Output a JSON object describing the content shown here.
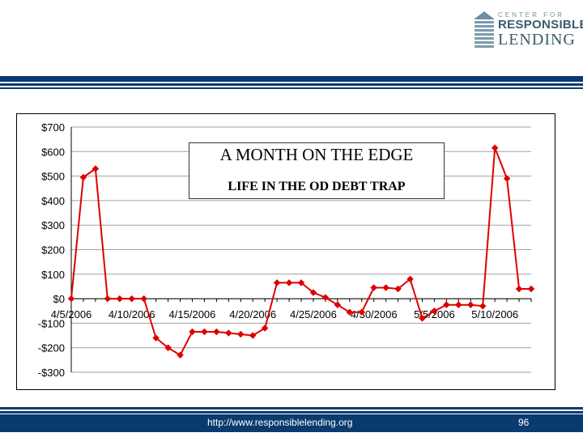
{
  "logo": {
    "line1": "CENTER FOR",
    "line2": "RESPONSIBLE",
    "line3": "LENDING"
  },
  "colors": {
    "brand": "#0a3b6f",
    "series": "#dd0000"
  },
  "footer": {
    "url": "http://www.responsiblelending.org",
    "page_number": "96"
  },
  "chart_data": {
    "type": "line",
    "title": "A MONTH ON THE EDGE",
    "subtitle": "LIFE IN THE OD DEBT TRAP",
    "xlabel": "",
    "ylabel": "",
    "ylim": [
      -300,
      700
    ],
    "yticks": [
      -300,
      -200,
      -100,
      0,
      100,
      200,
      300,
      400,
      500,
      600,
      700
    ],
    "ytick_labels": [
      "-$300",
      "-$200",
      "-$100",
      "$0",
      "$100",
      "$200",
      "$300",
      "$400",
      "$500",
      "$600",
      "$700"
    ],
    "xtick_labels": [
      "4/5/2006",
      "4/10/2006",
      "4/15/2006",
      "4/20/2006",
      "4/25/2006",
      "4/30/2006",
      "5/5/2006",
      "5/10/2006"
    ],
    "grid": true,
    "legend": "none",
    "marker": "diamond",
    "x": [
      "4/5/2006",
      "4/6/2006",
      "4/7/2006",
      "4/8/2006",
      "4/9/2006",
      "4/10/2006",
      "4/11/2006",
      "4/12/2006",
      "4/13/2006",
      "4/14/2006",
      "4/15/2006",
      "4/16/2006",
      "4/17/2006",
      "4/18/2006",
      "4/19/2006",
      "4/20/2006",
      "4/21/2006",
      "4/22/2006",
      "4/23/2006",
      "4/24/2006",
      "4/25/2006",
      "4/26/2006",
      "4/27/2006",
      "4/28/2006",
      "4/29/2006",
      "4/30/2006",
      "5/1/2006",
      "5/2/2006",
      "5/3/2006",
      "5/4/2006",
      "5/5/2006",
      "5/6/2006",
      "5/7/2006",
      "5/8/2006",
      "5/9/2006",
      "5/10/2006",
      "5/11/2006",
      "5/12/2006",
      "5/13/2006"
    ],
    "values": [
      0,
      495,
      530,
      0,
      0,
      0,
      0,
      -160,
      -200,
      -230,
      -135,
      -135,
      -135,
      -140,
      -145,
      -150,
      -120,
      65,
      65,
      65,
      25,
      5,
      -25,
      -55,
      -55,
      45,
      45,
      40,
      80,
      -80,
      -50,
      -25,
      -25,
      -25,
      -30,
      615,
      490,
      40,
      40
    ]
  }
}
